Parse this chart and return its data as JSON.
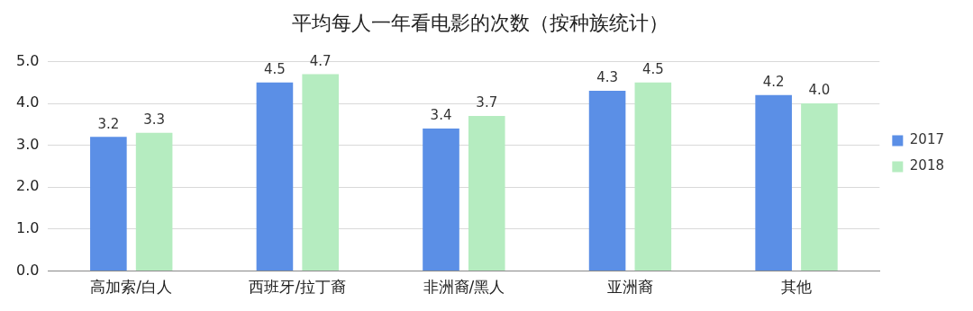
{
  "chart_data": {
    "type": "bar",
    "title": "平均每人一年看电影的次数（按种族统计）",
    "categories": [
      "高加索/白人",
      "西班牙/拉丁裔",
      "非洲裔/黑人",
      "亚洲裔",
      "其他"
    ],
    "series": [
      {
        "name": "2017",
        "color": "#5b8fe6",
        "values": [
          3.2,
          4.5,
          3.4,
          4.3,
          4.2
        ],
        "value_labels": [
          "3.2",
          "4.5",
          "3.4",
          "4.3",
          "4.2"
        ]
      },
      {
        "name": "2018",
        "color": "#b5ecc0",
        "values": [
          3.3,
          4.7,
          3.7,
          4.5,
          4.0
        ],
        "value_labels": [
          "3.3",
          "4.7",
          "3.7",
          "4.5",
          "4.0"
        ]
      }
    ],
    "ylim": [
      0,
      5
    ],
    "yticks": [
      {
        "value": 0,
        "label": "0.0"
      },
      {
        "value": 1,
        "label": "1.0"
      },
      {
        "value": 2,
        "label": "2.0"
      },
      {
        "value": 3,
        "label": "3.0"
      },
      {
        "value": 4,
        "label": "4.0"
      },
      {
        "value": 5,
        "label": "5.0"
      }
    ],
    "grid": "y",
    "legend": "right"
  }
}
